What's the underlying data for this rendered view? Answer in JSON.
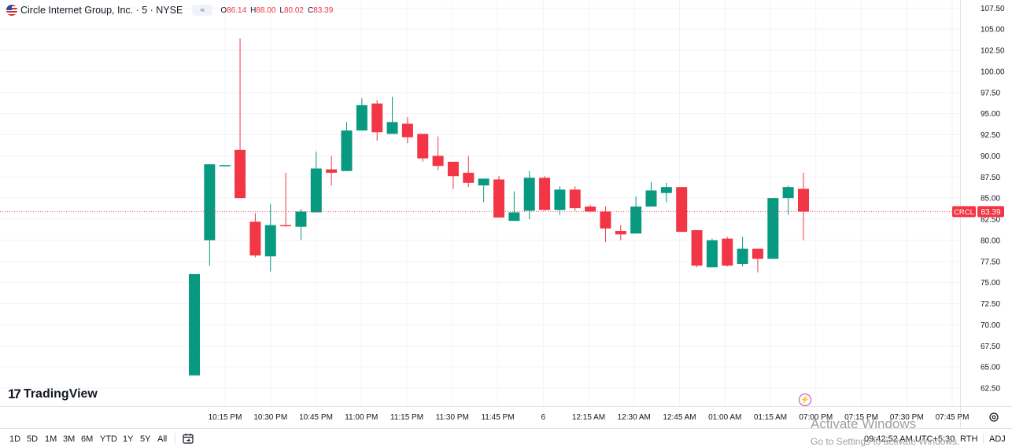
{
  "header": {
    "title": "Circle Internet Group, Inc. · 5 · NYSE",
    "pill_icon": "≈",
    "o_label": "O",
    "o_value": "86.14",
    "h_label": "H",
    "h_value": "88.00",
    "l_label": "L",
    "l_value": "80.02",
    "c_label": "C",
    "c_value": "83.39"
  },
  "logo_text": "TradingView",
  "price_tag": {
    "symbol": "CRCL",
    "price": "83.39"
  },
  "timeframes": [
    "1D",
    "5D",
    "1M",
    "3M",
    "6M",
    "YTD",
    "1Y",
    "5Y",
    "All"
  ],
  "status": {
    "time": "09:42:52 AM UTC+5:30",
    "session": "RTH",
    "adj": "ADJ"
  },
  "watermark": {
    "line1": "Activate Windows",
    "line2": "Go to Settings to activate Windows."
  },
  "colors": {
    "up": "#089981",
    "down": "#f23645",
    "grid": "#f0f3fa",
    "axis_text": "#131722"
  },
  "chart_data": {
    "type": "candlestick",
    "symbol": "CRCL",
    "interval": "5",
    "y_ticks": [
      "62.50",
      "65.00",
      "67.50",
      "70.00",
      "72.50",
      "75.00",
      "77.50",
      "80.00",
      "82.50",
      "85.00",
      "87.50",
      "90.00",
      "92.50",
      "95.00",
      "97.50",
      "100.00",
      "102.50",
      "105.00",
      "107.50"
    ],
    "ylim": [
      61.5,
      108.3
    ],
    "x_ticks": [
      "10:15 PM",
      "10:30 PM",
      "10:45 PM",
      "11:00 PM",
      "11:15 PM",
      "11:30 PM",
      "11:45 PM",
      "6",
      "12:15 AM",
      "12:30 AM",
      "12:45 AM",
      "01:00 AM",
      "01:15 AM",
      "07:00 PM",
      "07:15 PM",
      "07:30 PM",
      "07:45 PM"
    ],
    "last_price": 83.39,
    "candles": [
      {
        "o": 64.0,
        "h": 76.0,
        "l": 64.0,
        "c": 76.0
      },
      {
        "o": 80.0,
        "h": 89.0,
        "l": 77.0,
        "c": 89.0
      },
      {
        "o": 88.9,
        "h": 88.9,
        "l": 88.9,
        "c": 88.9
      },
      {
        "o": 90.7,
        "h": 103.9,
        "l": 85.0,
        "c": 85.0
      },
      {
        "o": 82.2,
        "h": 83.2,
        "l": 78.0,
        "c": 78.2
      },
      {
        "o": 78.1,
        "h": 84.3,
        "l": 76.3,
        "c": 81.8
      },
      {
        "o": 81.8,
        "h": 88.0,
        "l": 81.6,
        "c": 81.7
      },
      {
        "o": 81.6,
        "h": 83.7,
        "l": 80.0,
        "c": 83.4
      },
      {
        "o": 83.3,
        "h": 90.5,
        "l": 83.3,
        "c": 88.5
      },
      {
        "o": 88.4,
        "h": 90.0,
        "l": 86.5,
        "c": 88.0
      },
      {
        "o": 88.2,
        "h": 94.0,
        "l": 88.2,
        "c": 93.0
      },
      {
        "o": 93.0,
        "h": 96.8,
        "l": 93.0,
        "c": 96.0
      },
      {
        "o": 96.2,
        "h": 96.6,
        "l": 91.8,
        "c": 92.8
      },
      {
        "o": 92.6,
        "h": 97.0,
        "l": 92.6,
        "c": 94.0
      },
      {
        "o": 93.8,
        "h": 94.6,
        "l": 91.5,
        "c": 92.2
      },
      {
        "o": 92.6,
        "h": 92.6,
        "l": 89.3,
        "c": 89.7
      },
      {
        "o": 90.0,
        "h": 92.3,
        "l": 88.3,
        "c": 88.8
      },
      {
        "o": 89.3,
        "h": 89.3,
        "l": 86.1,
        "c": 87.6
      },
      {
        "o": 88.0,
        "h": 90.0,
        "l": 86.3,
        "c": 86.8
      },
      {
        "o": 86.5,
        "h": 87.3,
        "l": 84.5,
        "c": 87.3
      },
      {
        "o": 87.2,
        "h": 87.6,
        "l": 82.7,
        "c": 82.7
      },
      {
        "o": 82.3,
        "h": 85.8,
        "l": 82.3,
        "c": 83.3
      },
      {
        "o": 83.5,
        "h": 88.2,
        "l": 82.5,
        "c": 87.4
      },
      {
        "o": 87.4,
        "h": 87.6,
        "l": 83.5,
        "c": 83.6
      },
      {
        "o": 83.6,
        "h": 86.4,
        "l": 83.0,
        "c": 86.0
      },
      {
        "o": 86.0,
        "h": 86.4,
        "l": 83.5,
        "c": 83.8
      },
      {
        "o": 84.0,
        "h": 84.2,
        "l": 83.3,
        "c": 83.4
      },
      {
        "o": 83.4,
        "h": 84.0,
        "l": 79.8,
        "c": 81.4
      },
      {
        "o": 81.1,
        "h": 81.8,
        "l": 80.0,
        "c": 80.7
      },
      {
        "o": 80.8,
        "h": 85.2,
        "l": 80.8,
        "c": 84.0
      },
      {
        "o": 84.0,
        "h": 86.9,
        "l": 84.0,
        "c": 85.9
      },
      {
        "o": 85.6,
        "h": 86.8,
        "l": 84.5,
        "c": 86.3
      },
      {
        "o": 86.3,
        "h": 86.3,
        "l": 81.0,
        "c": 81.0
      },
      {
        "o": 81.2,
        "h": 81.2,
        "l": 76.8,
        "c": 77.0
      },
      {
        "o": 76.8,
        "h": 80.2,
        "l": 76.8,
        "c": 80.0
      },
      {
        "o": 80.2,
        "h": 80.4,
        "l": 76.9,
        "c": 77.0
      },
      {
        "o": 77.2,
        "h": 80.4,
        "l": 76.9,
        "c": 79.0
      },
      {
        "o": 79.0,
        "h": 79.0,
        "l": 76.2,
        "c": 77.8
      },
      {
        "o": 77.8,
        "h": 85.0,
        "l": 77.8,
        "c": 85.0
      },
      {
        "o": 85.0,
        "h": 86.5,
        "l": 83.0,
        "c": 86.3
      },
      {
        "o": 86.1,
        "h": 88.0,
        "l": 80.0,
        "c": 83.4
      }
    ]
  }
}
